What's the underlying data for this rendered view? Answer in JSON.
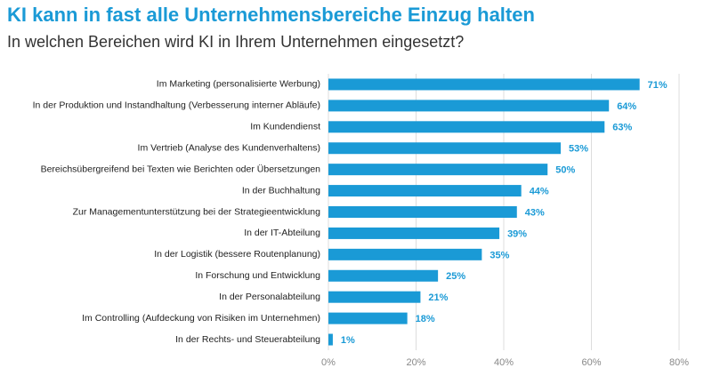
{
  "chart_data": {
    "type": "barh",
    "title": "KI kann in fast alle Unternehmensbereiche Einzug halten",
    "subtitle": "In welchen Bereichen wird KI in Ihrem Unternehmen eingesetzt?",
    "categories": [
      "Im Marketing (personalisierte Werbung)",
      "In der Produktion und Instandhaltung (Verbesserung interner Abläufe)",
      "Im Kundendienst",
      "Im Vertrieb (Analyse des Kundenverhaltens)",
      "Bereichsübergreifend bei Texten wie Berichten oder Übersetzungen",
      "In der Buchhaltung",
      "Zur Managementunterstützung bei der Strategieentwicklung",
      "In der IT-Abteilung",
      "In der Logistik (bessere Routenplanung)",
      "In Forschung und Entwicklung",
      "In der Personalabteilung",
      "Im Controlling (Aufdeckung von Risiken im Unternehmen)",
      "In der Rechts- und Steuerabteilung"
    ],
    "values": [
      71,
      64,
      63,
      53,
      50,
      44,
      43,
      39,
      35,
      25,
      21,
      18,
      1
    ],
    "value_labels": [
      "71%",
      "64%",
      "63%",
      "53%",
      "50%",
      "44%",
      "43%",
      "39%",
      "35%",
      "25%",
      "21%",
      "18%",
      "1%"
    ],
    "color": "#1a9ad6",
    "xlim": [
      0,
      80
    ],
    "xticks": [
      {
        "value": 0,
        "label": "0%"
      },
      {
        "value": 20,
        "label": "20%"
      },
      {
        "value": 40,
        "label": "40%"
      },
      {
        "value": 60,
        "label": "60%"
      },
      {
        "value": 80,
        "label": "80%"
      }
    ],
    "grid": true
  }
}
